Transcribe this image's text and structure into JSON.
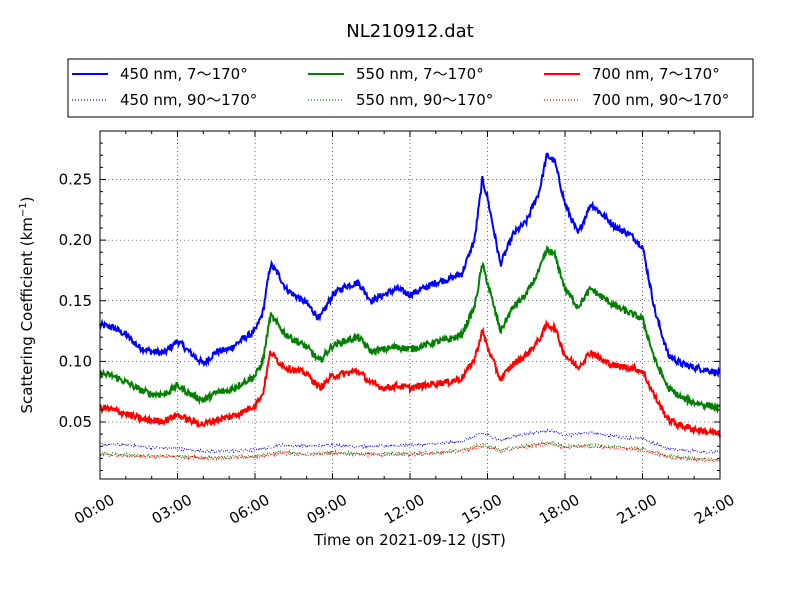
{
  "chart_data": {
    "type": "line",
    "title": "NL210912.dat",
    "xlabel": "Time on 2021-09-12 (JST)",
    "ylabel_main": "Scattering Coefficient (km",
    "ylabel_sup": "−1",
    "ylabel_close": ")",
    "xlim": [
      0,
      24
    ],
    "ylim": [
      0.003,
      0.29
    ],
    "xticks": [
      0,
      3,
      6,
      9,
      12,
      15,
      18,
      21,
      24
    ],
    "xtick_labels": [
      "00:00",
      "03:00",
      "06:00",
      "09:00",
      "12:00",
      "15:00",
      "18:00",
      "21:00",
      "24:00"
    ],
    "yticks": [
      0.05,
      0.1,
      0.15,
      0.2,
      0.25
    ],
    "ytick_labels": [
      "0.05",
      "0.10",
      "0.15",
      "0.20",
      "0.25"
    ],
    "grid": true,
    "legend_placement": "above plot, 3 columns",
    "series": [
      {
        "name": "450 nm, 7～170°",
        "color": "#0000ff",
        "style": "solid",
        "x": [
          0,
          0.5,
          1,
          1.5,
          2,
          2.5,
          3,
          3.5,
          4,
          4.5,
          5,
          5.5,
          6,
          6.3,
          6.6,
          6.9,
          7.2,
          7.5,
          8,
          8.5,
          9,
          9.5,
          10,
          10.5,
          11,
          11.5,
          12,
          12.5,
          13,
          13.5,
          14,
          14.5,
          14.8,
          15,
          15.5,
          16,
          16.5,
          17,
          17.3,
          17.6,
          18,
          18.5,
          19,
          19.5,
          20,
          20.5,
          21,
          21.5,
          22,
          22.5,
          23,
          23.5,
          24
        ],
        "y": [
          0.13,
          0.128,
          0.122,
          0.112,
          0.108,
          0.107,
          0.117,
          0.107,
          0.098,
          0.108,
          0.11,
          0.118,
          0.125,
          0.14,
          0.18,
          0.172,
          0.16,
          0.155,
          0.148,
          0.135,
          0.155,
          0.162,
          0.165,
          0.15,
          0.155,
          0.16,
          0.155,
          0.16,
          0.165,
          0.168,
          0.172,
          0.2,
          0.25,
          0.235,
          0.18,
          0.205,
          0.215,
          0.24,
          0.27,
          0.265,
          0.23,
          0.205,
          0.23,
          0.22,
          0.21,
          0.205,
          0.195,
          0.14,
          0.105,
          0.098,
          0.095,
          0.093,
          0.09
        ]
      },
      {
        "name": "450 nm, 90～170°",
        "color": "#0000ff",
        "style": "dotted",
        "x": [
          0,
          1,
          2,
          3,
          4,
          5,
          6,
          7,
          8,
          9,
          10,
          11,
          12,
          13,
          14,
          14.8,
          15.5,
          16,
          17,
          17.5,
          18,
          19,
          20,
          21,
          22,
          23,
          24
        ],
        "y": [
          0.032,
          0.031,
          0.029,
          0.028,
          0.026,
          0.026,
          0.027,
          0.031,
          0.03,
          0.031,
          0.03,
          0.03,
          0.031,
          0.032,
          0.034,
          0.041,
          0.035,
          0.038,
          0.042,
          0.043,
          0.039,
          0.041,
          0.038,
          0.036,
          0.028,
          0.026,
          0.025
        ]
      },
      {
        "name": "550 nm, 7～170°",
        "color": "#008000",
        "style": "solid",
        "x": [
          0,
          0.5,
          1,
          1.5,
          2,
          2.5,
          3,
          3.5,
          4,
          4.5,
          5,
          5.5,
          6,
          6.3,
          6.6,
          6.9,
          7.2,
          7.5,
          8,
          8.5,
          9,
          9.5,
          10,
          10.5,
          11,
          11.5,
          12,
          12.5,
          13,
          13.5,
          14,
          14.5,
          14.8,
          15,
          15.5,
          16,
          16.5,
          17,
          17.3,
          17.6,
          18,
          18.5,
          19,
          19.5,
          20,
          20.5,
          21,
          21.5,
          22,
          22.5,
          23,
          23.5,
          24
        ],
        "y": [
          0.09,
          0.088,
          0.083,
          0.077,
          0.073,
          0.073,
          0.08,
          0.073,
          0.068,
          0.074,
          0.076,
          0.082,
          0.088,
          0.1,
          0.138,
          0.13,
          0.122,
          0.118,
          0.112,
          0.1,
          0.113,
          0.117,
          0.12,
          0.108,
          0.11,
          0.112,
          0.11,
          0.113,
          0.116,
          0.118,
          0.122,
          0.145,
          0.18,
          0.165,
          0.125,
          0.145,
          0.155,
          0.175,
          0.192,
          0.188,
          0.16,
          0.145,
          0.16,
          0.152,
          0.145,
          0.14,
          0.135,
          0.1,
          0.078,
          0.07,
          0.066,
          0.064,
          0.061
        ]
      },
      {
        "name": "550 nm, 90～170°",
        "color": "#008000",
        "style": "dotted",
        "x": [
          0,
          1,
          2,
          3,
          4,
          5,
          6,
          7,
          8,
          9,
          10,
          11,
          12,
          13,
          14,
          14.8,
          15.5,
          16,
          17,
          17.5,
          18,
          19,
          20,
          21,
          22,
          23,
          24
        ],
        "y": [
          0.024,
          0.023,
          0.022,
          0.022,
          0.021,
          0.021,
          0.022,
          0.025,
          0.024,
          0.025,
          0.024,
          0.024,
          0.024,
          0.025,
          0.027,
          0.032,
          0.027,
          0.029,
          0.032,
          0.033,
          0.03,
          0.031,
          0.029,
          0.028,
          0.022,
          0.02,
          0.019
        ]
      },
      {
        "name": "700 nm, 7～170°",
        "color": "#ff0000",
        "style": "solid",
        "x": [
          0,
          0.5,
          1,
          1.5,
          2,
          2.5,
          3,
          3.5,
          4,
          4.5,
          5,
          5.5,
          6,
          6.3,
          6.6,
          6.9,
          7.2,
          7.5,
          8,
          8.5,
          9,
          9.5,
          10,
          10.5,
          11,
          11.5,
          12,
          12.5,
          13,
          13.5,
          14,
          14.5,
          14.8,
          15,
          15.5,
          16,
          16.5,
          17,
          17.3,
          17.6,
          18,
          18.5,
          19,
          19.5,
          20,
          20.5,
          21,
          21.5,
          22,
          22.5,
          23,
          23.5,
          24
        ],
        "y": [
          0.062,
          0.06,
          0.057,
          0.053,
          0.051,
          0.051,
          0.056,
          0.051,
          0.048,
          0.052,
          0.054,
          0.058,
          0.064,
          0.073,
          0.108,
          0.1,
          0.095,
          0.093,
          0.09,
          0.078,
          0.088,
          0.09,
          0.092,
          0.082,
          0.078,
          0.08,
          0.078,
          0.08,
          0.082,
          0.083,
          0.086,
          0.102,
          0.125,
          0.112,
          0.085,
          0.098,
          0.105,
          0.118,
          0.13,
          0.128,
          0.105,
          0.095,
          0.108,
          0.1,
          0.096,
          0.095,
          0.092,
          0.07,
          0.052,
          0.047,
          0.044,
          0.042,
          0.04
        ]
      },
      {
        "name": "700 nm, 90～170°",
        "color": "#ff0000",
        "style": "dotted",
        "x": [
          0,
          1,
          2,
          3,
          4,
          5,
          6,
          7,
          8,
          9,
          10,
          11,
          12,
          13,
          14,
          14.8,
          15.5,
          16,
          17,
          17.5,
          18,
          19,
          20,
          21,
          22,
          23,
          24
        ],
        "y": [
          0.023,
          0.022,
          0.021,
          0.021,
          0.02,
          0.02,
          0.021,
          0.024,
          0.023,
          0.024,
          0.023,
          0.023,
          0.023,
          0.024,
          0.026,
          0.03,
          0.026,
          0.028,
          0.031,
          0.032,
          0.029,
          0.03,
          0.028,
          0.027,
          0.021,
          0.019,
          0.018
        ]
      }
    ]
  }
}
